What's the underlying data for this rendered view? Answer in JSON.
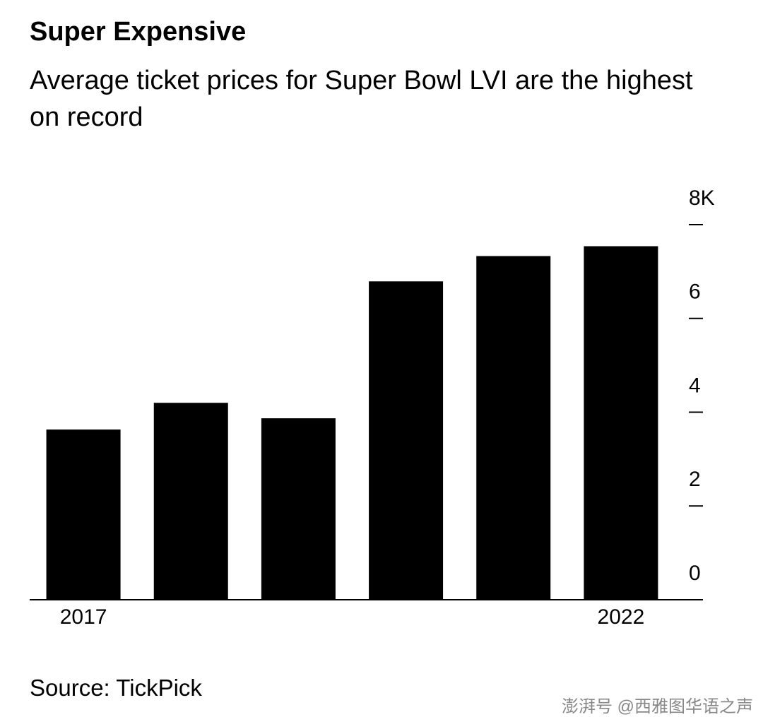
{
  "chart_data": {
    "type": "bar",
    "title": "Super Expensive",
    "subtitle": "Average ticket prices for Super Bowl LVI are the highest on record",
    "source": "Source: TickPick",
    "watermark": "澎湃号 @西雅图华语之声",
    "categories": [
      "2017",
      null,
      null,
      null,
      null,
      "2022"
    ],
    "values": [
      3.63,
      4.2,
      3.87,
      6.79,
      7.33,
      7.54
    ],
    "color": "#000000",
    "ylim": [
      0,
      8
    ],
    "yticks": [
      0,
      2,
      4,
      6,
      {
        "value": 8,
        "label": "8K"
      }
    ],
    "y_axis_side": "right"
  }
}
